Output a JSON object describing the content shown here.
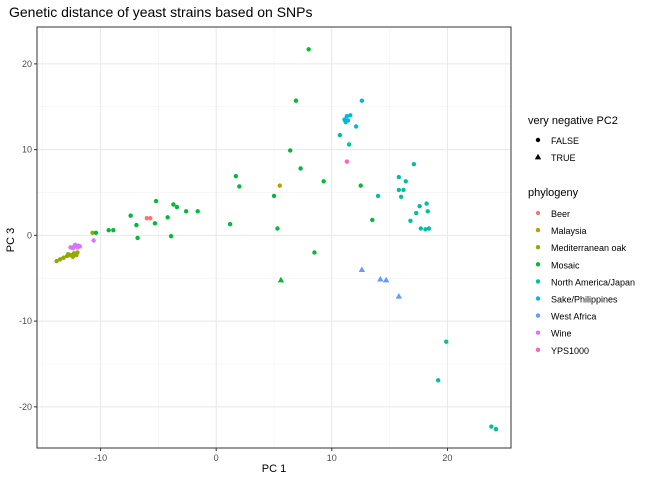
{
  "chart_data": {
    "type": "scatter",
    "title": "Genetic distance of yeast strains based on SNPs",
    "xlabel": "PC 1",
    "ylabel": "PC 3",
    "xlim": [
      -15.5,
      25.5
    ],
    "ylim": [
      -24.8,
      24.3
    ],
    "xticks": [
      -10,
      0,
      10,
      20
    ],
    "yticks": [
      -20,
      -10,
      0,
      10,
      20
    ],
    "grid": true,
    "legend_placement": "right",
    "shape_legend": {
      "title": "very negative PC2",
      "items": [
        {
          "label": "FALSE",
          "shape": "circle"
        },
        {
          "label": "TRUE",
          "shape": "triangle"
        }
      ]
    },
    "color_legend": {
      "title": "phylogeny",
      "items": [
        {
          "label": "Beer",
          "color": "#F8766D"
        },
        {
          "label": "Malaysia",
          "color": "#C49A00"
        },
        {
          "label": "Mediterranean oak",
          "color": "#93AA00"
        },
        {
          "label": "Mosaic",
          "color": "#00BA38"
        },
        {
          "label": "North America/Japan",
          "color": "#00C19F"
        },
        {
          "label": "Sake/Philippines",
          "color": "#00B9E3"
        },
        {
          "label": "West Africa",
          "color": "#619CFF"
        },
        {
          "label": "Wine",
          "color": "#DB72FB"
        },
        {
          "label": "YPS1000",
          "color": "#FF61C3"
        }
      ]
    },
    "series": [
      {
        "name": "Beer",
        "color": "#F8766D",
        "points": [
          {
            "x": -6.0,
            "y": 2.0,
            "shape": "circle"
          },
          {
            "x": -5.7,
            "y": 2.0,
            "shape": "circle"
          }
        ]
      },
      {
        "name": "Malaysia",
        "color": "#C49A00",
        "points": [
          {
            "x": 5.5,
            "y": 5.8,
            "shape": "circle"
          }
        ]
      },
      {
        "name": "Mediterranean oak",
        "color": "#93AA00",
        "points": [
          {
            "x": -13.8,
            "y": -3.0,
            "shape": "circle"
          },
          {
            "x": -13.5,
            "y": -2.8,
            "shape": "circle"
          },
          {
            "x": -13.2,
            "y": -2.6,
            "shape": "circle"
          },
          {
            "x": -12.9,
            "y": -2.4,
            "shape": "circle"
          },
          {
            "x": -12.6,
            "y": -2.3,
            "shape": "circle"
          },
          {
            "x": -12.3,
            "y": -2.1,
            "shape": "circle"
          },
          {
            "x": -12.0,
            "y": -2.0,
            "shape": "circle"
          },
          {
            "x": -12.4,
            "y": -2.5,
            "shape": "circle"
          },
          {
            "x": -12.1,
            "y": -2.3,
            "shape": "circle"
          },
          {
            "x": -12.8,
            "y": -2.2,
            "shape": "circle"
          },
          {
            "x": -10.7,
            "y": 0.3,
            "shape": "circle"
          }
        ]
      },
      {
        "name": "Mosaic",
        "color": "#00BA38",
        "points": [
          {
            "x": -10.4,
            "y": 0.3,
            "shape": "circle"
          },
          {
            "x": -9.3,
            "y": 0.6,
            "shape": "circle"
          },
          {
            "x": -8.9,
            "y": 0.6,
            "shape": "circle"
          },
          {
            "x": -7.4,
            "y": 2.3,
            "shape": "circle"
          },
          {
            "x": -6.9,
            "y": 1.2,
            "shape": "circle"
          },
          {
            "x": -6.8,
            "y": -0.3,
            "shape": "circle"
          },
          {
            "x": -5.2,
            "y": 4.0,
            "shape": "circle"
          },
          {
            "x": -5.3,
            "y": 1.4,
            "shape": "circle"
          },
          {
            "x": -4.2,
            "y": 2.1,
            "shape": "circle"
          },
          {
            "x": -3.7,
            "y": 3.6,
            "shape": "circle"
          },
          {
            "x": -3.4,
            "y": 3.3,
            "shape": "circle"
          },
          {
            "x": -3.9,
            "y": -0.1,
            "shape": "circle"
          },
          {
            "x": -2.6,
            "y": 2.8,
            "shape": "circle"
          },
          {
            "x": -1.6,
            "y": 2.8,
            "shape": "circle"
          },
          {
            "x": 1.2,
            "y": 1.3,
            "shape": "circle"
          },
          {
            "x": 1.7,
            "y": 6.9,
            "shape": "circle"
          },
          {
            "x": 2.0,
            "y": 5.7,
            "shape": "circle"
          },
          {
            "x": 5.0,
            "y": 4.6,
            "shape": "circle"
          },
          {
            "x": 5.3,
            "y": 0.8,
            "shape": "circle"
          },
          {
            "x": 6.4,
            "y": 9.9,
            "shape": "circle"
          },
          {
            "x": 6.9,
            "y": 15.7,
            "shape": "circle"
          },
          {
            "x": 7.3,
            "y": 7.8,
            "shape": "circle"
          },
          {
            "x": 8.0,
            "y": 21.7,
            "shape": "circle"
          },
          {
            "x": 8.5,
            "y": -2.0,
            "shape": "circle"
          },
          {
            "x": 9.3,
            "y": 6.3,
            "shape": "circle"
          },
          {
            "x": 12.5,
            "y": 5.8,
            "shape": "circle"
          },
          {
            "x": 13.5,
            "y": 1.8,
            "shape": "circle"
          },
          {
            "x": 5.6,
            "y": -5.2,
            "shape": "triangle"
          }
        ]
      },
      {
        "name": "North America/Japan",
        "color": "#00C19F",
        "points": [
          {
            "x": 10.7,
            "y": 11.7,
            "shape": "circle"
          },
          {
            "x": 11.5,
            "y": 10.6,
            "shape": "circle"
          },
          {
            "x": 14.0,
            "y": 4.6,
            "shape": "circle"
          },
          {
            "x": 15.8,
            "y": 6.8,
            "shape": "circle"
          },
          {
            "x": 16.0,
            "y": 4.5,
            "shape": "circle"
          },
          {
            "x": 16.2,
            "y": 5.3,
            "shape": "circle"
          },
          {
            "x": 16.4,
            "y": 6.3,
            "shape": "circle"
          },
          {
            "x": 15.8,
            "y": 5.3,
            "shape": "circle"
          },
          {
            "x": 16.8,
            "y": 1.7,
            "shape": "circle"
          },
          {
            "x": 17.1,
            "y": 8.3,
            "shape": "circle"
          },
          {
            "x": 17.3,
            "y": 2.6,
            "shape": "circle"
          },
          {
            "x": 17.6,
            "y": 3.4,
            "shape": "circle"
          },
          {
            "x": 17.7,
            "y": 0.8,
            "shape": "circle"
          },
          {
            "x": 18.2,
            "y": 3.7,
            "shape": "circle"
          },
          {
            "x": 18.3,
            "y": 2.8,
            "shape": "circle"
          },
          {
            "x": 18.4,
            "y": 0.8,
            "shape": "circle"
          },
          {
            "x": 18.1,
            "y": 0.7,
            "shape": "circle"
          },
          {
            "x": 19.9,
            "y": -12.4,
            "shape": "circle"
          },
          {
            "x": 19.2,
            "y": -16.9,
            "shape": "circle"
          },
          {
            "x": 23.8,
            "y": -22.3,
            "shape": "circle"
          },
          {
            "x": 24.2,
            "y": -22.6,
            "shape": "circle"
          }
        ]
      },
      {
        "name": "Sake/Philippines",
        "color": "#00B9E3",
        "points": [
          {
            "x": 11.1,
            "y": 13.5,
            "shape": "circle"
          },
          {
            "x": 11.3,
            "y": 13.9,
            "shape": "circle"
          },
          {
            "x": 11.6,
            "y": 14.0,
            "shape": "circle"
          },
          {
            "x": 11.2,
            "y": 13.2,
            "shape": "circle"
          },
          {
            "x": 11.4,
            "y": 13.4,
            "shape": "circle"
          },
          {
            "x": 12.1,
            "y": 12.7,
            "shape": "circle"
          },
          {
            "x": 12.6,
            "y": 15.7,
            "shape": "circle"
          }
        ]
      },
      {
        "name": "West Africa",
        "color": "#619CFF",
        "points": [
          {
            "x": 12.6,
            "y": -4.0,
            "shape": "triangle"
          },
          {
            "x": 14.2,
            "y": -5.1,
            "shape": "triangle"
          },
          {
            "x": 14.7,
            "y": -5.2,
            "shape": "triangle"
          },
          {
            "x": 15.8,
            "y": -7.1,
            "shape": "triangle"
          }
        ]
      },
      {
        "name": "Wine",
        "color": "#DB72FB",
        "points": [
          {
            "x": -12.6,
            "y": -1.4,
            "shape": "circle"
          },
          {
            "x": -12.3,
            "y": -1.3,
            "shape": "circle"
          },
          {
            "x": -12.1,
            "y": -1.3,
            "shape": "circle"
          },
          {
            "x": -11.9,
            "y": -1.2,
            "shape": "circle"
          },
          {
            "x": -12.4,
            "y": -1.5,
            "shape": "circle"
          },
          {
            "x": -12.0,
            "y": -1.4,
            "shape": "circle"
          },
          {
            "x": -11.8,
            "y": -1.3,
            "shape": "circle"
          },
          {
            "x": -12.2,
            "y": -1.1,
            "shape": "circle"
          },
          {
            "x": -10.6,
            "y": -0.6,
            "shape": "circle"
          }
        ]
      },
      {
        "name": "YPS1000",
        "color": "#FF61C3",
        "points": [
          {
            "x": 11.3,
            "y": 8.6,
            "shape": "circle"
          }
        ]
      }
    ]
  }
}
